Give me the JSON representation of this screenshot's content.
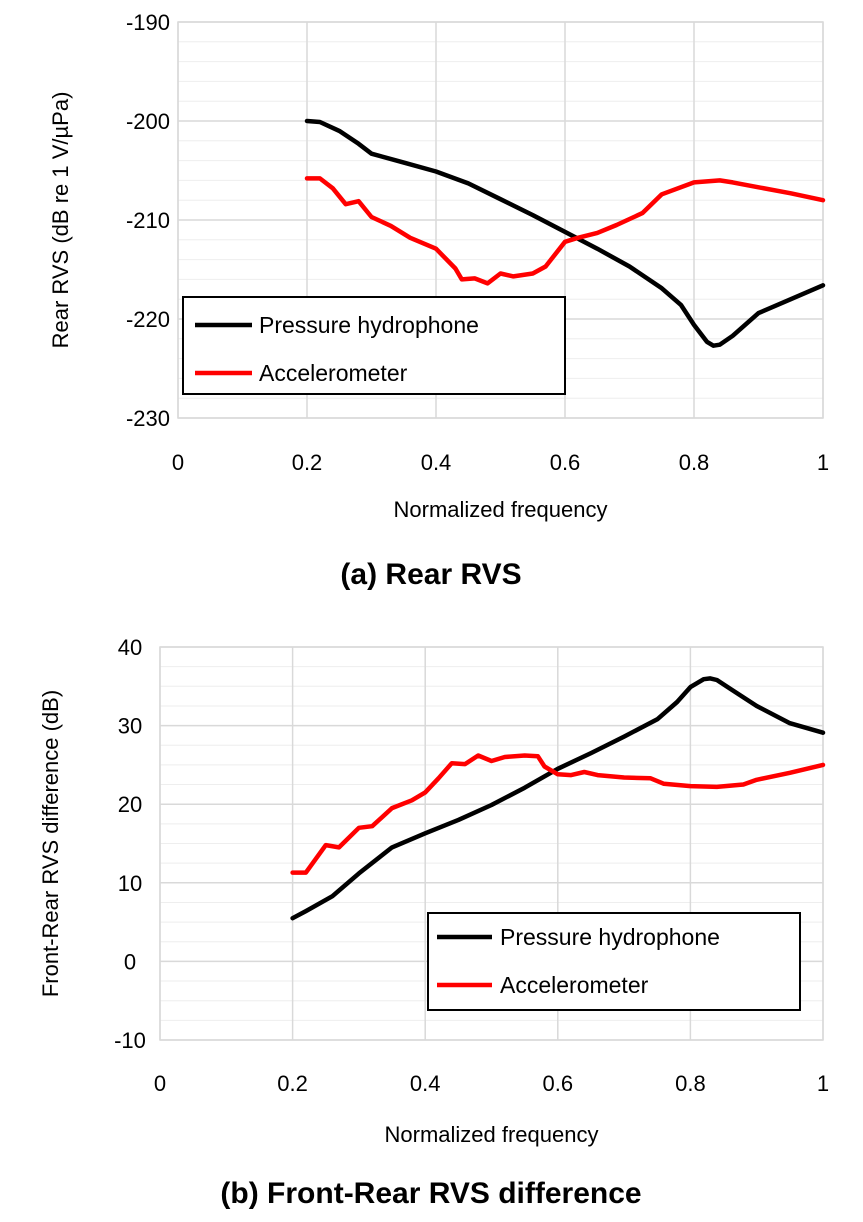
{
  "colors": {
    "pressure_hydrophone": "#000000",
    "accelerometer": "#ff0000",
    "grid_major": "#d9d9d9",
    "grid_minor": "#eeeeee"
  },
  "chart_data": [
    {
      "type": "line",
      "caption": "(a) Rear RVS",
      "xlabel": "Normalized frequency",
      "ylabel": "Rear RVS (dB re 1 V/µPa)",
      "xlim": [
        0,
        1
      ],
      "ylim": [
        -230,
        -190
      ],
      "xticks": [
        0,
        0.2,
        0.4,
        0.6,
        0.8,
        1
      ],
      "xtick_labels": [
        "0",
        "0.2",
        "0.4",
        "0.6",
        "0.8",
        "1"
      ],
      "yticks": [
        -190,
        -200,
        -210,
        -220,
        -230
      ],
      "ytick_labels": [
        "-190",
        "-200",
        "-210",
        "-220",
        "-230"
      ],
      "grid": true,
      "legend_position": "bottom-left",
      "series": [
        {
          "name": "Pressure hydrophone",
          "color": "#000000",
          "x": [
            0.2,
            0.22,
            0.25,
            0.28,
            0.3,
            0.35,
            0.4,
            0.45,
            0.5,
            0.55,
            0.6,
            0.65,
            0.7,
            0.75,
            0.78,
            0.8,
            0.82,
            0.83,
            0.84,
            0.86,
            0.9,
            0.95,
            1.0
          ],
          "y": [
            -200,
            -200.1,
            -201,
            -202.3,
            -203.3,
            -204.2,
            -205.1,
            -206.3,
            -207.9,
            -209.5,
            -211.2,
            -212.9,
            -214.7,
            -216.9,
            -218.6,
            -220.6,
            -222.3,
            -222.7,
            -222.6,
            -221.7,
            -219.4,
            -218,
            -216.6
          ]
        },
        {
          "name": "Accelerometer",
          "color": "#ff0000",
          "x": [
            0.2,
            0.22,
            0.24,
            0.26,
            0.28,
            0.3,
            0.33,
            0.36,
            0.4,
            0.43,
            0.44,
            0.46,
            0.48,
            0.5,
            0.52,
            0.55,
            0.57,
            0.6,
            0.62,
            0.65,
            0.68,
            0.72,
            0.75,
            0.8,
            0.84,
            0.86,
            0.9,
            0.95,
            1.0
          ],
          "y": [
            -205.8,
            -205.8,
            -206.8,
            -208.4,
            -208.1,
            -209.7,
            -210.6,
            -211.8,
            -212.9,
            -214.9,
            -216,
            -215.9,
            -216.4,
            -215.4,
            -215.7,
            -215.4,
            -214.7,
            -212.2,
            -211.8,
            -211.3,
            -210.5,
            -209.3,
            -207.4,
            -206.2,
            -206,
            -206.2,
            -206.7,
            -207.3,
            -208
          ]
        }
      ]
    },
    {
      "type": "line",
      "caption": "(b) Front-Rear RVS difference",
      "xlabel": "Normalized frequency",
      "ylabel": "Front-Rear RVS difference (dB)",
      "xlim": [
        0,
        1
      ],
      "ylim": [
        -10,
        40
      ],
      "xticks": [
        0,
        0.2,
        0.4,
        0.6,
        0.8,
        1
      ],
      "xtick_labels": [
        "0",
        "0.2",
        "0.4",
        "0.6",
        "0.8",
        "1"
      ],
      "yticks": [
        40,
        30,
        20,
        10,
        0,
        -10
      ],
      "ytick_labels": [
        "40",
        "30",
        "20",
        "10",
        "0",
        "-10"
      ],
      "grid": true,
      "legend_position": "bottom-right",
      "series": [
        {
          "name": "Pressure hydrophone",
          "color": "#000000",
          "x": [
            0.2,
            0.22,
            0.26,
            0.3,
            0.35,
            0.4,
            0.45,
            0.5,
            0.55,
            0.6,
            0.65,
            0.7,
            0.75,
            0.78,
            0.8,
            0.82,
            0.83,
            0.84,
            0.86,
            0.9,
            0.95,
            1.0
          ],
          "y": [
            5.5,
            6.4,
            8.3,
            11.2,
            14.5,
            16.3,
            18,
            19.9,
            22.1,
            24.5,
            26.5,
            28.6,
            30.8,
            33,
            34.9,
            35.9,
            36,
            35.8,
            34.7,
            32.5,
            30.3,
            29.1
          ]
        },
        {
          "name": "Accelerometer",
          "color": "#ff0000",
          "x": [
            0.2,
            0.22,
            0.25,
            0.27,
            0.3,
            0.32,
            0.35,
            0.38,
            0.4,
            0.42,
            0.44,
            0.46,
            0.48,
            0.5,
            0.52,
            0.55,
            0.57,
            0.58,
            0.6,
            0.62,
            0.64,
            0.66,
            0.7,
            0.74,
            0.76,
            0.8,
            0.84,
            0.88,
            0.9,
            0.95,
            1.0
          ],
          "y": [
            11.3,
            11.3,
            14.8,
            14.5,
            17,
            17.2,
            19.5,
            20.5,
            21.5,
            23.3,
            25.2,
            25.1,
            26.2,
            25.5,
            26,
            26.2,
            26.1,
            24.8,
            23.8,
            23.7,
            24.1,
            23.7,
            23.4,
            23.3,
            22.6,
            22.3,
            22.2,
            22.5,
            23.1,
            24,
            25
          ]
        }
      ]
    }
  ]
}
